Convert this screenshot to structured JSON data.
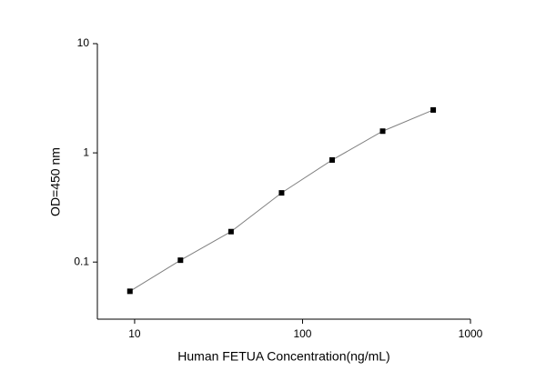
{
  "chart_data": {
    "type": "line",
    "x_label": "Human FETUA Concentration(ng/mL)",
    "y_label": "OD=450 nm",
    "x": [
      9.375,
      18.75,
      37.5,
      75,
      150,
      300,
      600
    ],
    "series": [
      {
        "color": "#000000",
        "values": [
          0.054,
          0.104,
          0.19,
          0.43,
          0.86,
          1.58,
          2.47
        ]
      }
    ],
    "xlim": [
      6,
      1000
    ],
    "ylim": [
      0.03,
      10
    ],
    "xticks": [
      10,
      100,
      1000
    ],
    "yticks": [
      0.1,
      1,
      10
    ],
    "xscale": "log",
    "yscale": "log",
    "line_color": "#808080"
  }
}
